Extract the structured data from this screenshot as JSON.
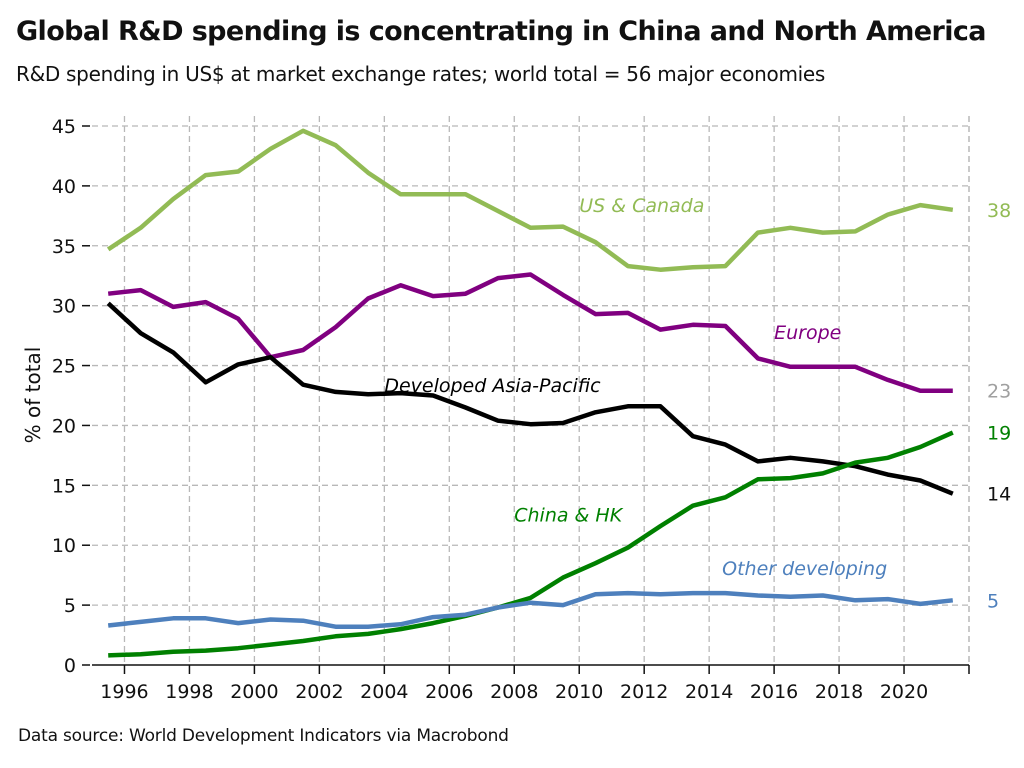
{
  "header": {
    "title": "Global R&D spending is concentrating in China and North America",
    "subtitle": "R&D spending in US$ at market exchange rates; world total = 56 major economies"
  },
  "footer": {
    "source": "Data source: World Development Indicators via Macrobond"
  },
  "chart_data": {
    "type": "line",
    "title": "Global R&D spending is concentrating in China and North America",
    "subtitle": "R&D spending in US$ at market exchange rates; world total = 56 major economies",
    "xlabel": "",
    "ylabel": "% of total",
    "xlim": [
      1995,
      2022
    ],
    "ylim": [
      0,
      45
    ],
    "x_ticks": [
      1996,
      1998,
      2000,
      2002,
      2004,
      2006,
      2008,
      2010,
      2012,
      2014,
      2016,
      2018,
      2020
    ],
    "y_ticks": [
      0,
      5,
      10,
      15,
      20,
      25,
      30,
      35,
      40,
      45
    ],
    "grid": true,
    "x": [
      1995.5,
      1996.5,
      1997.5,
      1998.5,
      1999.5,
      2000.5,
      2001.5,
      2002.5,
      2003.5,
      2004.5,
      2005.5,
      2006.5,
      2007.5,
      2008.5,
      2009.5,
      2010.5,
      2011.5,
      2012.5,
      2013.5,
      2014.5,
      2015.5,
      2016.5,
      2017.5,
      2018.5,
      2019.5,
      2020.5,
      2021.5
    ],
    "series": [
      {
        "name": "US & Canada",
        "color": "#92bb55",
        "end_label": "38",
        "end_label_color": "#92bb55",
        "label_pos": {
          "x": 2010.0,
          "y": 37.8
        },
        "values": [
          34.7,
          36.5,
          38.9,
          40.9,
          41.2,
          43.1,
          44.6,
          43.4,
          41.1,
          39.3,
          39.3,
          39.3,
          37.9,
          36.5,
          36.6,
          35.3,
          33.3,
          33.0,
          33.2,
          33.3,
          36.1,
          36.5,
          36.1,
          36.2,
          37.6,
          38.4,
          38.0
        ]
      },
      {
        "name": "Europe",
        "color": "#800080",
        "end_label": "23",
        "end_label_color": "#a0a0a0",
        "label_pos": {
          "x": 2016.0,
          "y": 27.2
        },
        "values": [
          31.0,
          31.3,
          29.9,
          30.3,
          28.9,
          25.7,
          26.3,
          28.2,
          30.6,
          31.7,
          30.8,
          31.0,
          32.3,
          32.6,
          30.9,
          29.3,
          29.4,
          28.0,
          28.4,
          28.3,
          25.6,
          24.9,
          24.9,
          24.9,
          23.8,
          22.9,
          22.9
        ]
      },
      {
        "name": "Developed Asia-Pacific",
        "color": "#000000",
        "end_label": "14",
        "end_label_color": "#111111",
        "label_pos": {
          "x": 2004.0,
          "y": 22.8
        },
        "values": [
          30.2,
          27.7,
          26.1,
          23.6,
          25.1,
          25.7,
          23.4,
          22.8,
          22.6,
          22.7,
          22.5,
          21.5,
          20.4,
          20.1,
          20.2,
          21.1,
          21.6,
          21.6,
          19.1,
          18.4,
          17.0,
          17.3,
          17.0,
          16.6,
          15.9,
          15.4,
          14.3
        ]
      },
      {
        "name": "China & HK",
        "color": "#008000",
        "end_label": "19",
        "end_label_color": "#008000",
        "label_pos": {
          "x": 2008.0,
          "y": 12.0
        },
        "values": [
          0.8,
          0.9,
          1.1,
          1.2,
          1.4,
          1.7,
          2.0,
          2.4,
          2.6,
          3.0,
          3.5,
          4.1,
          4.8,
          5.6,
          7.3,
          8.5,
          9.8,
          11.6,
          13.3,
          14.0,
          15.5,
          15.6,
          16.0,
          16.9,
          17.3,
          18.2,
          19.4
        ]
      },
      {
        "name": "Other developing",
        "color": "#4e80bd",
        "end_label": "5",
        "end_label_color": "#4e80bd",
        "label_pos": {
          "x": 2014.4,
          "y": 7.5
        },
        "values": [
          3.3,
          3.6,
          3.9,
          3.9,
          3.5,
          3.8,
          3.7,
          3.2,
          3.2,
          3.4,
          4.0,
          4.2,
          4.8,
          5.2,
          5.0,
          5.9,
          6.0,
          5.9,
          6.0,
          6.0,
          5.8,
          5.7,
          5.8,
          5.4,
          5.5,
          5.1,
          5.4
        ]
      }
    ]
  }
}
